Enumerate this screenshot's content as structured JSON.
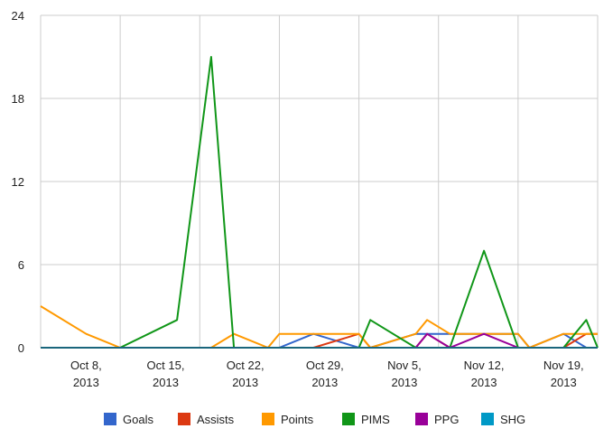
{
  "chart_data": {
    "type": "line",
    "title": "",
    "xlabel": "",
    "ylabel": "",
    "ylim": [
      0,
      24
    ],
    "y_ticks": [
      "0",
      "6",
      "12",
      "18",
      "24"
    ],
    "x_ticks": [
      {
        "line1": "Oct 8,",
        "line2": "2013",
        "date": "2013-10-08"
      },
      {
        "line1": "Oct 15,",
        "line2": "2013",
        "date": "2013-10-15"
      },
      {
        "line1": "Oct 22,",
        "line2": "2013",
        "date": "2013-10-22"
      },
      {
        "line1": "Oct 29,",
        "line2": "2013",
        "date": "2013-10-29"
      },
      {
        "line1": "Nov 5,",
        "line2": "2013",
        "date": "2013-11-05"
      },
      {
        "line1": "Nov 12,",
        "line2": "2013",
        "date": "2013-11-12"
      },
      {
        "line1": "Nov 19,",
        "line2": "2013",
        "date": "2013-11-19"
      }
    ],
    "x": [
      "2013-10-04",
      "2013-10-08",
      "2013-10-11",
      "2013-10-16",
      "2013-10-19",
      "2013-10-21",
      "2013-10-24",
      "2013-10-25",
      "2013-10-28",
      "2013-11-01",
      "2013-11-02",
      "2013-11-06",
      "2013-11-07",
      "2013-11-09",
      "2013-11-12",
      "2013-11-15",
      "2013-11-16",
      "2013-11-19",
      "2013-11-21",
      "2013-11-22"
    ],
    "grid": true,
    "legend_position": "bottom",
    "series": [
      {
        "name": "Goals",
        "color": "#3366cc",
        "values": [
          0,
          0,
          0,
          0,
          0,
          0,
          0,
          0,
          1,
          0,
          0,
          1,
          1,
          1,
          1,
          1,
          0,
          1,
          0,
          0
        ]
      },
      {
        "name": "Assists",
        "color": "#dc3912",
        "values": [
          0,
          0,
          0,
          0,
          0,
          0,
          0,
          0,
          0,
          1,
          0,
          0,
          1,
          0,
          0,
          0,
          0,
          0,
          1,
          1
        ]
      },
      {
        "name": "Points",
        "color": "#ff9900",
        "values": [
          3,
          1,
          0,
          0,
          0,
          1,
          0,
          1,
          1,
          1,
          0,
          1,
          2,
          1,
          1,
          1,
          0,
          1,
          1,
          1
        ]
      },
      {
        "name": "PIMS",
        "color": "#109618",
        "values": [
          0,
          0,
          0,
          2,
          21,
          0,
          0,
          0,
          0,
          0,
          2,
          0,
          0,
          0,
          7,
          0,
          0,
          0,
          2,
          0
        ]
      },
      {
        "name": "PPG",
        "color": "#990099",
        "values": [
          0,
          0,
          0,
          0,
          0,
          0,
          0,
          0,
          0,
          0,
          0,
          0,
          1,
          0,
          1,
          0,
          0,
          0,
          0,
          0
        ]
      },
      {
        "name": "SHG",
        "color": "#0099c6",
        "values": [
          0,
          0,
          0,
          0,
          0,
          0,
          0,
          0,
          0,
          0,
          0,
          0,
          0,
          0,
          0,
          0,
          0,
          0,
          0,
          0
        ]
      }
    ]
  }
}
